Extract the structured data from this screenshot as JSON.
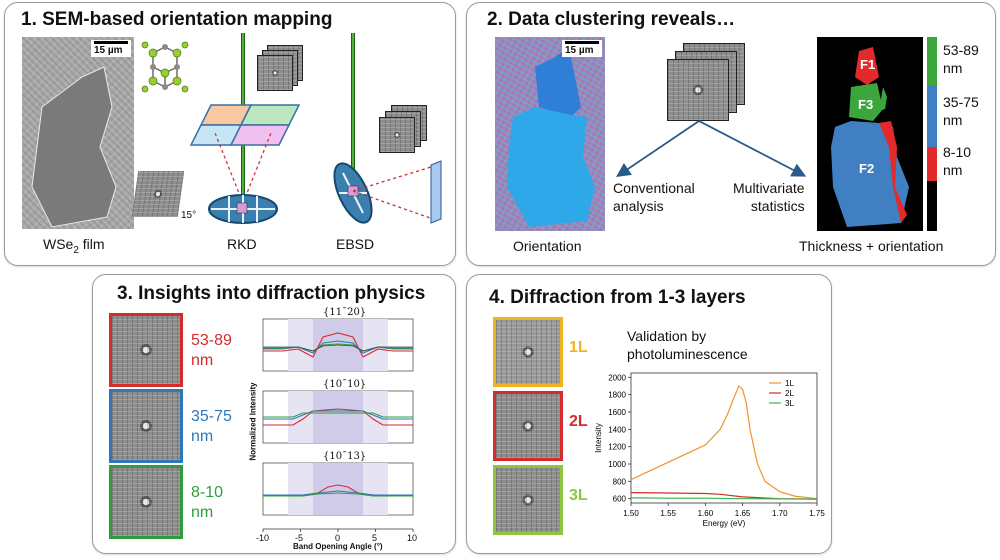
{
  "panels": {
    "p1": {
      "title": "1. SEM-based orientation mapping",
      "scale": "15 µm",
      "film_label_prefix": "WSe",
      "film_label_sub": "2",
      "film_label_suffix": " film",
      "angle": "15°",
      "rkd": "RKD",
      "ebsd": "EBSD"
    },
    "p2": {
      "title": "2. Data clustering reveals…",
      "scale": "15 µm",
      "orientation": "Orientation",
      "conventional_1": "Conventional",
      "conventional_2": "analysis",
      "multivariate_1": "Multivariate",
      "multivariate_2": "statistics",
      "f1": "F1",
      "f2": "F2",
      "f3": "F3",
      "thickness": "Thickness + orientation",
      "legend": [
        {
          "text1": "53-89",
          "text2": "nm",
          "color": "#3ca63c"
        },
        {
          "text1": "35-75",
          "text2": "nm",
          "color": "#3f7fc2"
        },
        {
          "text1": "8-10",
          "text2": "nm",
          "color": "#e22a2a"
        }
      ]
    },
    "p3": {
      "title": "3. Insights into diffraction physics",
      "thumbs": [
        {
          "text1": "53-89",
          "text2": "nm",
          "color": "#d62b2b"
        },
        {
          "text1": "35-75",
          "text2": "nm",
          "color": "#2f78b7"
        },
        {
          "text1": "8-10",
          "text2": "nm",
          "color": "#2f9e3a"
        }
      ],
      "plots": [
        "{11¯20}",
        "{10¯10}",
        "{10¯13}"
      ],
      "ylabel": "Normalized Intensity",
      "xlabel": "Band Opening Angle (°)",
      "xticks": [
        "-10",
        "-5",
        "0",
        "5",
        "10"
      ]
    },
    "p4": {
      "title": "4. Diffraction from 1-3 layers",
      "layers": [
        {
          "label": "1L",
          "color": "#f0b323"
        },
        {
          "label": "2L",
          "color": "#d62b2b"
        },
        {
          "label": "3L",
          "color": "#8dc63f"
        }
      ],
      "validation_1": "Validation by",
      "validation_2": "photoluminescence"
    }
  },
  "chart_data": {
    "type": "line",
    "xlabel": "Energy (eV)",
    "ylabel": "Intensity",
    "xlim": [
      1.5,
      1.75
    ],
    "ylim": [
      550,
      2050
    ],
    "xticks": [
      "1.50",
      "1.55",
      "1.60",
      "1.65",
      "1.70",
      "1.75"
    ],
    "yticks": [
      "600",
      "800",
      "1000",
      "1200",
      "1400",
      "1600",
      "1800",
      "2000"
    ],
    "legend_position": "top-right",
    "series": [
      {
        "name": "1L",
        "color": "#f0932b",
        "x": [
          1.5,
          1.52,
          1.54,
          1.56,
          1.58,
          1.6,
          1.62,
          1.63,
          1.64,
          1.645,
          1.65,
          1.655,
          1.66,
          1.67,
          1.68,
          1.7,
          1.72,
          1.75
        ],
        "y": [
          820,
          900,
          980,
          1060,
          1140,
          1220,
          1400,
          1580,
          1800,
          1900,
          1860,
          1700,
          1400,
          1000,
          800,
          680,
          630,
          600
        ]
      },
      {
        "name": "2L",
        "color": "#d62b2b",
        "x": [
          1.5,
          1.55,
          1.6,
          1.62,
          1.65,
          1.7,
          1.75
        ],
        "y": [
          670,
          665,
          660,
          650,
          620,
          600,
          595
        ]
      },
      {
        "name": "3L",
        "color": "#3cb44b",
        "x": [
          1.5,
          1.55,
          1.6,
          1.65,
          1.7,
          1.75
        ],
        "y": [
          610,
          605,
          605,
          600,
          598,
          595
        ]
      }
    ]
  }
}
